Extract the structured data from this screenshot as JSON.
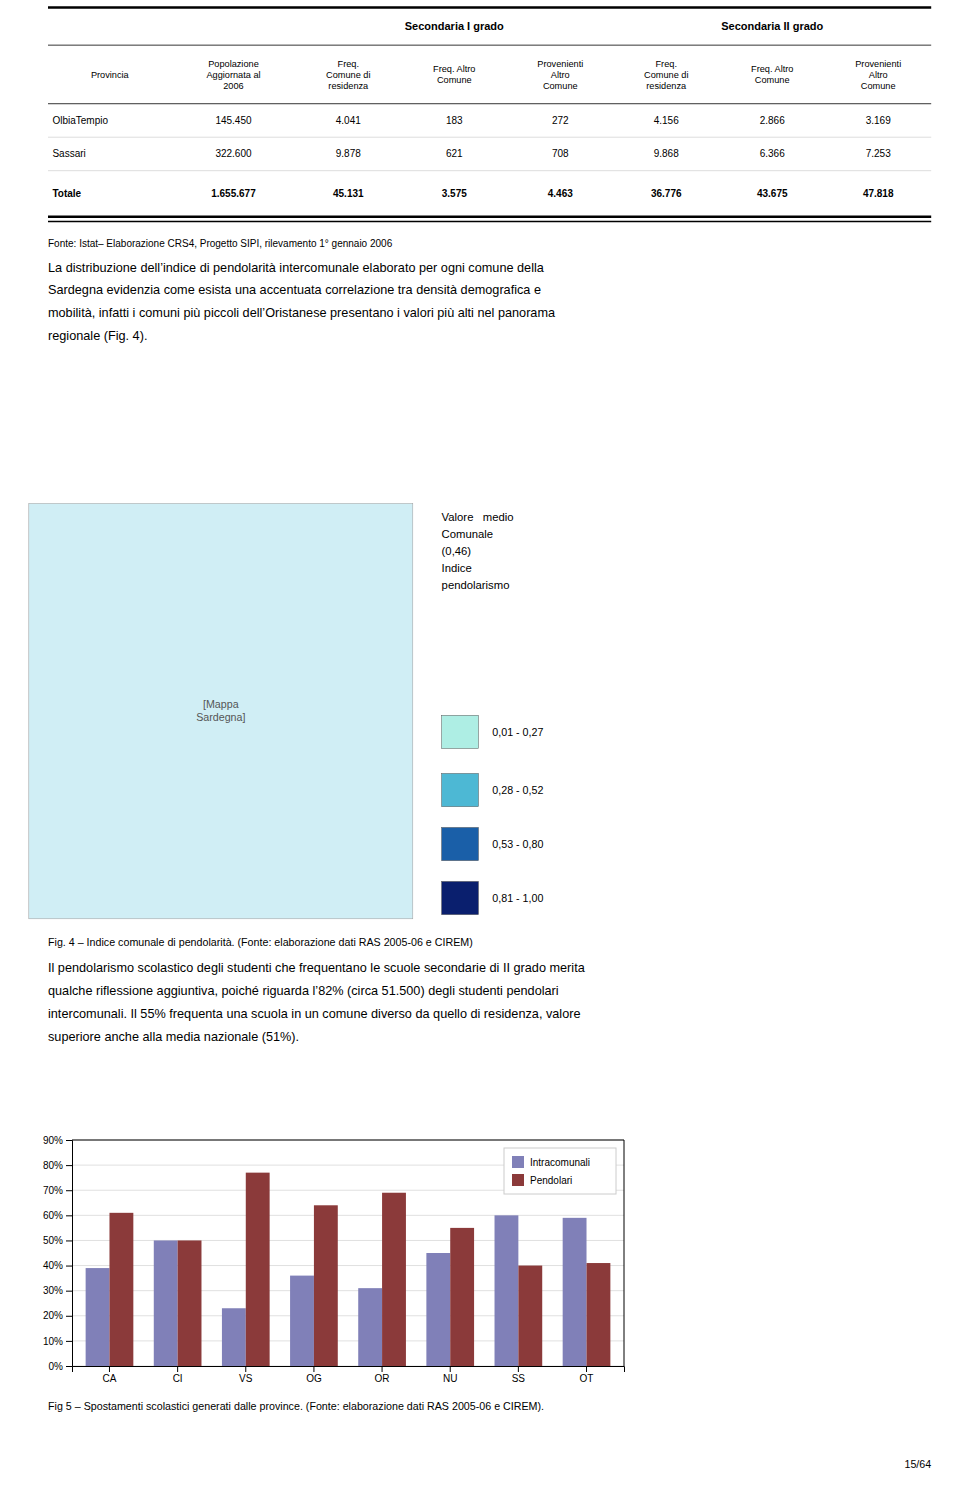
{
  "chart_data": {
    "type": "bar",
    "categories": [
      "CA",
      "CI",
      "VS",
      "OG",
      "OR",
      "NU",
      "SS",
      "OT"
    ],
    "series": [
      {
        "name": "Intracomunali",
        "color": "#8080b8",
        "values": [
          39,
          50,
          23,
          36,
          31,
          45,
          60,
          59
        ]
      },
      {
        "name": "Pendolari",
        "color": "#8b3a3a",
        "values": [
          61,
          50,
          77,
          64,
          69,
          55,
          40,
          41
        ]
      }
    ],
    "ylim": [
      0,
      90
    ],
    "yticks": [
      {
        "value": 0,
        "label": "0%"
      },
      {
        "value": 10,
        "label": "10%"
      },
      {
        "value": 20,
        "label": "20%"
      },
      {
        "value": 30,
        "label": "30%"
      },
      {
        "value": 40,
        "label": "40%"
      },
      {
        "value": 50,
        "label": "50%"
      },
      {
        "value": 60,
        "label": "60%"
      },
      {
        "value": 70,
        "label": "70%"
      },
      {
        "value": 80,
        "label": "80%"
      },
      {
        "value": 90,
        "label": "90%"
      }
    ],
    "grid": true,
    "legend": "upper right"
  },
  "table": {
    "header_top": [
      "Secondaria I grado",
      "Secondaria II grado"
    ],
    "header_bot": [
      "Provincia",
      "Popolazione\nAggiornata al\n2006",
      "Freq.\nComune di\nresidenza",
      "Freq. Altro\nComune",
      "Provenienti\nAltro\nComune",
      "Freq.\nComune di\nresidenza",
      "Freq. Altro\nComune",
      "Provenienti\nAltro\nComune"
    ],
    "rows": [
      [
        "OlbiaTempio",
        "145.450",
        "4.041",
        "183",
        "272",
        "4.156",
        "2.866",
        "3.169"
      ],
      [
        "Sassari",
        "322.600",
        "9.878",
        "621",
        "708",
        "9.868",
        "6.366",
        "7.253"
      ],
      [
        "Totale",
        "1.655.677",
        "45.131",
        "3.575",
        "4.463",
        "36.776",
        "43.675",
        "47.818"
      ]
    ]
  },
  "fonte_text": "Fonte: Istat– Elaborazione CRS4, Progetto SIPI, rilevamento 1° gennaio 2006",
  "body_text_1": "La distribuzione dell’indice di pendolarità intercomunale elaborato per ogni comune della\nSardegna evidenzia come esista una accentuata correlazione tra densità demografica e\nmobilità, infatti i comuni più piccoli dell’Oristanese presentano i valori più alti nel panorama\nregionale (Fig. 4).",
  "map_placeholder": "[Mappa\nSardegna]",
  "map_legend": {
    "title": "Valore   medio\nComunale\n(0,46)\nIndice\npendolarismo",
    "items": [
      {
        "color": "#aeeee4",
        "label": "0,01 - 0,27"
      },
      {
        "color": "#4db8d4",
        "label": "0,28 - 0,52"
      },
      {
        "color": "#1a5fa8",
        "label": "0,53 - 0,80"
      },
      {
        "color": "#0a1f6e",
        "label": "0,81 - 1,00"
      }
    ]
  },
  "fig4_caption": "Fig. 4 – Indice comunale di pendolarità. (Fonte: elaborazione dati RAS 2005-06 e CIREM)",
  "body_text_2": "Il pendolarismo scolastico degli studenti che frequentano le scuole secondarie di II grado merita\nqualche riflessione aggiuntiva, poiché riguarda l’82% (circa 51.500) degli studenti pendolari\nintercomunali. Il 55% frequenta una scuola in un comune diverso da quello di residenza, valore\nsuperiore anche alla media nazionale (51%).",
  "fig5_caption": "Fig 5 – Spostamenti scolastici generati dalle province. (Fonte: elaborazione dati RAS 2005-06 e CIREM).",
  "page_number": "15/64"
}
